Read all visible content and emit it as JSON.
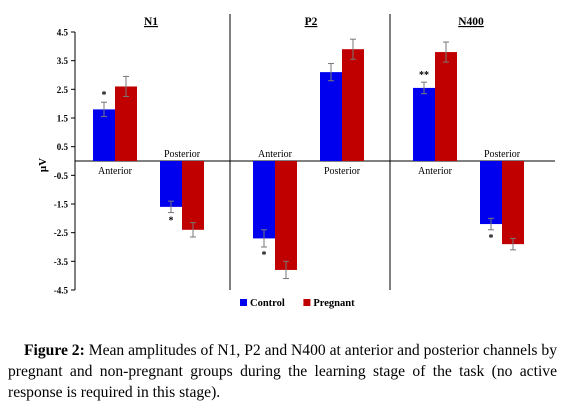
{
  "chart_data": {
    "type": "bar",
    "ylabel": "μV",
    "ylim": [
      -4.5,
      4.5
    ],
    "yticks": [
      "4.5",
      "3.5",
      "2.5",
      "1.5",
      "0.5",
      "-0.5",
      "-1.5",
      "-2.5",
      "-3.5",
      "-4.5"
    ],
    "grid": false,
    "legend_position": "bottom-center",
    "series_colors": {
      "Control": "#0000ee",
      "Pregnant": "#c00000"
    },
    "panels": [
      {
        "title": "N1",
        "groups": [
          {
            "label": "Anterior",
            "control": 1.8,
            "pregnant": 2.6,
            "control_err": 0.25,
            "pregnant_err": 0.35,
            "significance": "*"
          },
          {
            "label": "Posterior",
            "control": -1.6,
            "pregnant": -2.4,
            "control_err": 0.2,
            "pregnant_err": 0.25,
            "significance": "*"
          }
        ]
      },
      {
        "title": "P2",
        "groups": [
          {
            "label": "Anterior",
            "control": -2.7,
            "pregnant": -3.8,
            "control_err": 0.3,
            "pregnant_err": 0.3,
            "significance": "*"
          },
          {
            "label": "Posterior",
            "control": 3.1,
            "pregnant": 3.9,
            "control_err": 0.3,
            "pregnant_err": 0.35,
            "significance": ""
          }
        ]
      },
      {
        "title": "N400",
        "groups": [
          {
            "label": "Anterior",
            "control": 2.55,
            "pregnant": 3.8,
            "control_err": 0.2,
            "pregnant_err": 0.35,
            "significance": "**"
          },
          {
            "label": "Posterior",
            "control": -2.2,
            "pregnant": -2.9,
            "control_err": 0.2,
            "pregnant_err": 0.2,
            "significance": "*"
          }
        ]
      }
    ],
    "legend": [
      "Control",
      "Pregnant"
    ]
  },
  "caption": {
    "label": "Figure 2:",
    "text": " Mean amplitudes of N1, P2 and N400 at anterior and posterior channels by pregnant and non-pregnant groups during the learning stage of the task (no active response is required in this stage)."
  }
}
